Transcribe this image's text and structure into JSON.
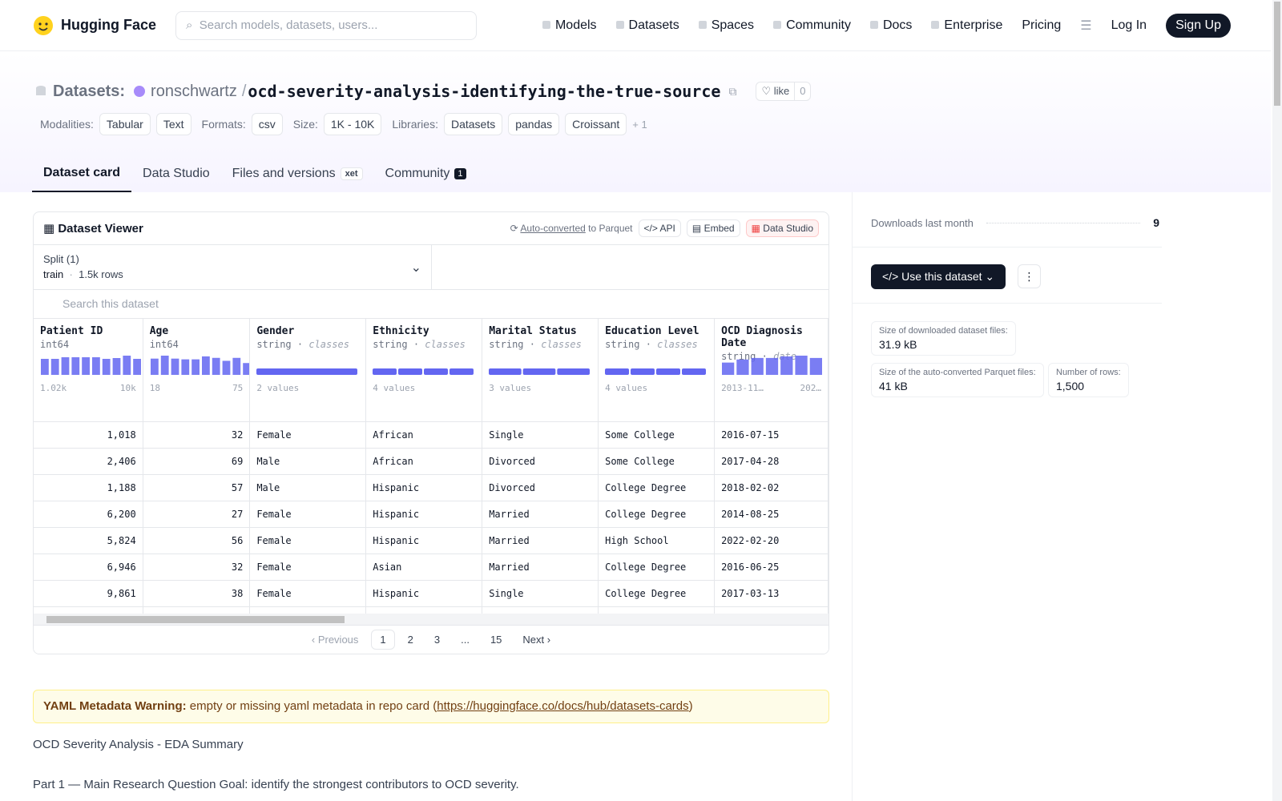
{
  "nav": {
    "brand": "Hugging Face",
    "search_placeholder": "Search models, datasets, users...",
    "links": [
      "Models",
      "Datasets",
      "Spaces",
      "Community",
      "Docs",
      "Enterprise",
      "Pricing"
    ],
    "login": "Log In",
    "signup": "Sign Up"
  },
  "header": {
    "section": "Datasets:",
    "owner": "ronschwartz",
    "separator": "/",
    "name": "ocd-severity-analysis-identifying-the-true-source",
    "like": "like",
    "likes": 0,
    "tag_groups": [
      {
        "label": "Modalities:",
        "tags": [
          "Tabular",
          "Text"
        ]
      },
      {
        "label": "Formats:",
        "tags": [
          "csv"
        ]
      },
      {
        "label": "Size:",
        "tags": [
          "1K - 10K"
        ]
      },
      {
        "label": "Libraries:",
        "tags": [
          "Datasets",
          "pandas",
          "Croissant"
        ]
      }
    ],
    "more": "+ 1"
  },
  "tabs": {
    "items": [
      "Dataset card",
      "Data Studio",
      "Files and versions",
      "Community"
    ],
    "xet": "xet",
    "community_count": 1
  },
  "viewer": {
    "title": "Dataset Viewer",
    "auto_converted": "Auto-converted",
    "to_parquet": "to Parquet",
    "api": "API",
    "embed": "Embed",
    "data_studio": "Data Studio",
    "split_label": "Split (1)",
    "split": "train",
    "dot": "·",
    "rows_count": "1.5k rows",
    "search_placeholder": "Search this dataset",
    "columns": [
      {
        "name": "Patient ID",
        "type": "int64",
        "hist": [
          20,
          20,
          22,
          22,
          22,
          22,
          20,
          21,
          24,
          20
        ],
        "min": "1.02k",
        "max": "10k"
      },
      {
        "name": "Age",
        "type": "int64",
        "hist": [
          22,
          26,
          22,
          21,
          21,
          25,
          23,
          19,
          23,
          16
        ],
        "min": "18",
        "max": "75"
      },
      {
        "name": "Gender",
        "type": "string",
        "kind": "classes",
        "classes": [
          1
        ],
        "summary": "2 values"
      },
      {
        "name": "Ethnicity",
        "type": "string",
        "kind": "classes",
        "classes": [
          1,
          1,
          1,
          1
        ],
        "summary": "4 values"
      },
      {
        "name": "Marital Status",
        "type": "string",
        "kind": "classes",
        "classes": [
          1,
          1,
          1
        ],
        "summary": "3 values"
      },
      {
        "name": "Education Level",
        "type": "string",
        "kind": "classes",
        "classes": [
          1,
          1,
          1,
          1
        ],
        "summary": "4 values"
      },
      {
        "name": "OCD Diagnosis Date",
        "type": "string",
        "kind": "date",
        "hist": [
          16,
          20,
          22,
          22,
          24,
          25,
          22
        ],
        "min": "2013-11…",
        "max": "202…"
      }
    ],
    "rows": [
      [
        "1,018",
        "32",
        "Female",
        "African",
        "Single",
        "Some College",
        "2016-07-15"
      ],
      [
        "2,406",
        "69",
        "Male",
        "African",
        "Divorced",
        "Some College",
        "2017-04-28"
      ],
      [
        "1,188",
        "57",
        "Male",
        "Hispanic",
        "Divorced",
        "College Degree",
        "2018-02-02"
      ],
      [
        "6,200",
        "27",
        "Female",
        "Hispanic",
        "Married",
        "College Degree",
        "2014-08-25"
      ],
      [
        "5,824",
        "56",
        "Female",
        "Hispanic",
        "Married",
        "High School",
        "2022-02-20"
      ],
      [
        "6,946",
        "32",
        "Female",
        "Asian",
        "Married",
        "College Degree",
        "2016-06-25"
      ],
      [
        "9,861",
        "38",
        "Female",
        "Hispanic",
        "Single",
        "College Degree",
        "2017-03-13"
      ]
    ],
    "pagination": [
      "Previous",
      "1",
      "2",
      "3",
      "...",
      "15",
      "Next"
    ]
  },
  "card": {
    "warning_title": "YAML Metadata Warning:",
    "warning_text": " empty or missing yaml metadata in repo card (",
    "warning_link": "https://huggingface.co/docs/hub/datasets-cards",
    "warning_end": ")",
    "paragraphs": [
      "OCD Severity Analysis - EDA Summary",
      "Part 1 — Main Research Question Goal: identify the strongest contributors to OCD severity."
    ]
  },
  "sidebar": {
    "downloads_label": "Downloads last month",
    "downloads": 9,
    "use_dataset": "Use this dataset",
    "stats": [
      {
        "label": "Size of downloaded dataset files:",
        "value": "31.9 kB"
      },
      {
        "label": "Size of the auto-converted Parquet files:",
        "value": "41 kB"
      },
      {
        "label": "Number of rows:",
        "value": "1,500"
      }
    ]
  }
}
